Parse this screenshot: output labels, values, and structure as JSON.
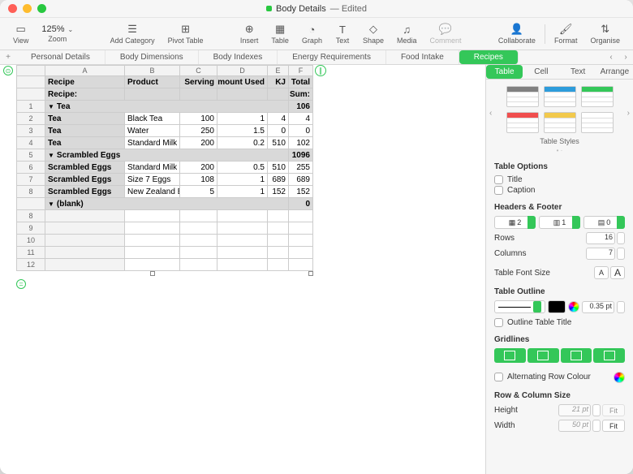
{
  "title": {
    "filename": "Body Details",
    "status": "Edited"
  },
  "toolbar": {
    "view": "View",
    "zoom": "Zoom",
    "zoom_value": "125%",
    "add_category": "Add Category",
    "pivot_table": "Pivot Table",
    "insert": "Insert",
    "table": "Table",
    "graph": "Graph",
    "text": "Text",
    "shape": "Shape",
    "media": "Media",
    "comment": "Comment",
    "collaborate": "Collaborate",
    "format": "Format",
    "organise": "Organise"
  },
  "sheets": {
    "tabs": [
      "Personal Details",
      "Body Dimensions",
      "Body Indexes",
      "Energy Requirements",
      "Food Intake",
      "Recipes"
    ],
    "active_index": 5
  },
  "columns": [
    "A",
    "B",
    "C",
    "D",
    "E",
    "F"
  ],
  "table": {
    "headers": {
      "recipe": "Recipe",
      "product": "Product",
      "serving": "Serving",
      "amount_used": "Amount Used",
      "kj": "KJ",
      "total": "Total"
    },
    "recipe_label": "Recipe:",
    "sum_label": "Sum:",
    "groups": [
      {
        "name": "Tea",
        "total": "106",
        "rows": [
          {
            "recipe": "Tea",
            "product": "Black Tea",
            "serving": "100",
            "amount": "1",
            "kj": "4",
            "total": "4"
          },
          {
            "recipe": "Tea",
            "product": "Water",
            "serving": "250",
            "amount": "1.5",
            "kj": "0",
            "total": "0"
          },
          {
            "recipe": "Tea",
            "product": "Standard Milk",
            "serving": "200",
            "amount": "0.2",
            "kj": "510",
            "total": "102"
          }
        ]
      },
      {
        "name": "Scrambled Eggs",
        "total": "1096",
        "rows": [
          {
            "recipe": "Scrambled Eggs",
            "product": "Standard Milk",
            "serving": "200",
            "amount": "0.5",
            "kj": "510",
            "total": "255"
          },
          {
            "recipe": "Scrambled Eggs",
            "product": "Size 7 Eggs",
            "serving": "108",
            "amount": "1",
            "kj": "689",
            "total": "689"
          },
          {
            "recipe": "Scrambled Eggs",
            "product": "New Zealand Butter",
            "serving": "5",
            "amount": "1",
            "kj": "152",
            "total": "152"
          }
        ]
      },
      {
        "name": "(blank)",
        "total": "0",
        "rows": []
      }
    ],
    "blank_rows": [
      8,
      9,
      10,
      11,
      12
    ]
  },
  "inspector": {
    "tabs": [
      "Table",
      "Cell",
      "Text",
      "Arrange"
    ],
    "active_tab": 0,
    "styles_label": "Table Styles",
    "style_colors": [
      "#808080",
      "#2d9cdb",
      "#34c759",
      "#f04e4e",
      "#f2c94c",
      "#ffffff"
    ],
    "table_options": "Table Options",
    "opt_title": "Title",
    "opt_caption": "Caption",
    "headers_footer": "Headers & Footer",
    "hf_values": [
      "2",
      "1",
      "0"
    ],
    "rows_label": "Rows",
    "rows_value": "16",
    "columns_label": "Columns",
    "columns_value": "7",
    "font_size_label": "Table Font Size",
    "outline_label": "Table Outline",
    "outline_width": "0.35 pt",
    "outline_title_chk": "Outline Table Title",
    "gridlines_label": "Gridlines",
    "alt_row_label": "Alternating Row Colour",
    "rowcol_size": "Row & Column Size",
    "height_label": "Height",
    "height_value": "21 pt",
    "width_label": "Width",
    "width_value": "50 pt",
    "fit": "Fit"
  }
}
